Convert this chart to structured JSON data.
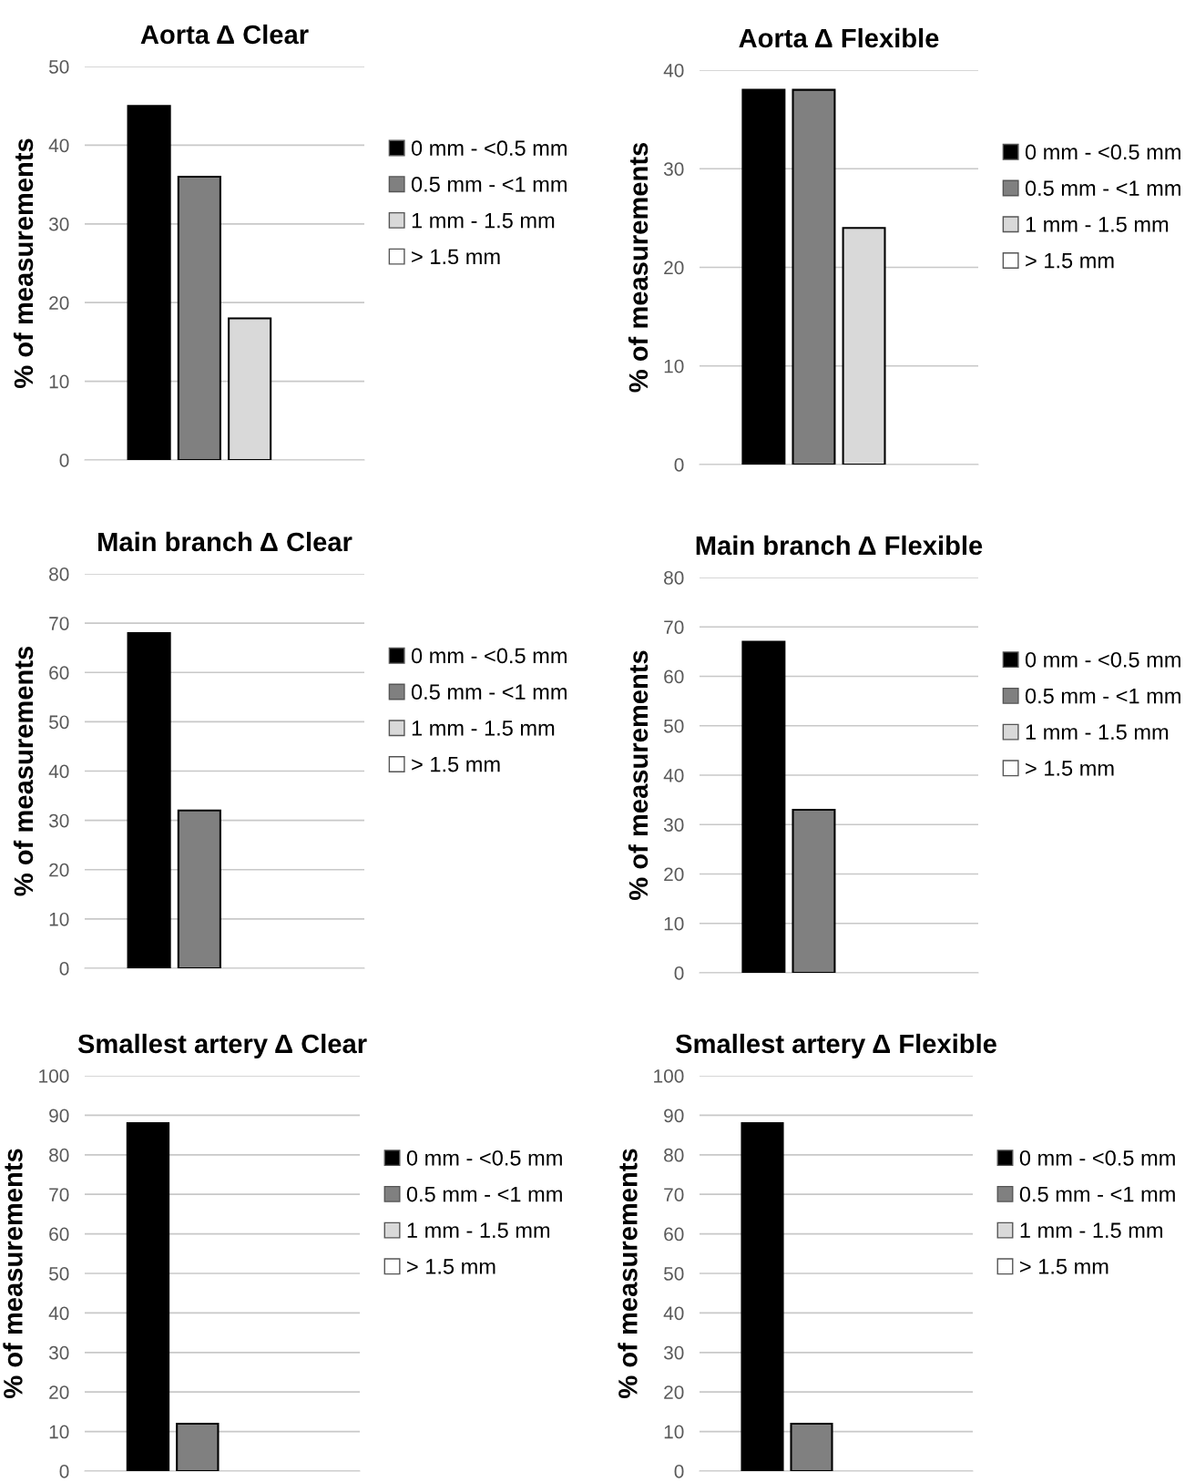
{
  "chart_data": [
    {
      "type": "bar",
      "title": "Aorta Δ Clear",
      "ylabel": "% of measurements",
      "categories": [
        null
      ],
      "ylim": [
        0,
        50
      ],
      "yticks": [
        0,
        10,
        20,
        30,
        40,
        50
      ],
      "grid": "y",
      "legend": "right",
      "series": [
        {
          "name": "0 mm - <0.5 mm",
          "color": "#000000",
          "values": [
            45
          ]
        },
        {
          "name": "0.5 mm - <1 mm",
          "color": "#808080",
          "values": [
            36
          ]
        },
        {
          "name": "1 mm - 1.5 mm",
          "color": "#d9d9d9",
          "values": [
            18
          ]
        },
        {
          "name": "> 1.5 mm",
          "color": "#ffffff",
          "values": [
            null
          ]
        }
      ]
    },
    {
      "type": "bar",
      "title": "Aorta Δ Flexible",
      "ylabel": "% of measurements",
      "categories": [
        null
      ],
      "ylim": [
        0,
        40
      ],
      "yticks": [
        0,
        10,
        20,
        30,
        40
      ],
      "grid": "y",
      "legend": "right",
      "series": [
        {
          "name": "0 mm - <0.5 mm",
          "color": "#000000",
          "values": [
            38
          ]
        },
        {
          "name": "0.5 mm - <1 mm",
          "color": "#808080",
          "values": [
            38
          ]
        },
        {
          "name": "1 mm - 1.5 mm",
          "color": "#d9d9d9",
          "values": [
            24
          ]
        },
        {
          "name": "> 1.5 mm",
          "color": "#ffffff",
          "values": [
            null
          ]
        }
      ]
    },
    {
      "type": "bar",
      "title": "Main branch Δ Clear",
      "ylabel": "% of measurements",
      "categories": [
        null
      ],
      "ylim": [
        0,
        80
      ],
      "yticks": [
        0,
        10,
        20,
        30,
        40,
        50,
        60,
        70,
        80
      ],
      "grid": "y",
      "legend": "right",
      "series": [
        {
          "name": "0 mm - <0.5 mm",
          "color": "#000000",
          "values": [
            68
          ]
        },
        {
          "name": "0.5 mm - <1 mm",
          "color": "#808080",
          "values": [
            32
          ]
        },
        {
          "name": "1 mm - 1.5 mm",
          "color": "#d9d9d9",
          "values": [
            null
          ]
        },
        {
          "name": "> 1.5 mm",
          "color": "#ffffff",
          "values": [
            null
          ]
        }
      ]
    },
    {
      "type": "bar",
      "title": "Main branch Δ Flexible",
      "ylabel": "% of measurements",
      "categories": [
        null
      ],
      "ylim": [
        0,
        80
      ],
      "yticks": [
        0,
        10,
        20,
        30,
        40,
        50,
        60,
        70,
        80
      ],
      "grid": "y",
      "legend": "right",
      "series": [
        {
          "name": "0 mm - <0.5 mm",
          "color": "#000000",
          "values": [
            67
          ]
        },
        {
          "name": "0.5 mm - <1 mm",
          "color": "#808080",
          "values": [
            33
          ]
        },
        {
          "name": "1 mm - 1.5 mm",
          "color": "#d9d9d9",
          "values": [
            null
          ]
        },
        {
          "name": "> 1.5 mm",
          "color": "#ffffff",
          "values": [
            null
          ]
        }
      ]
    },
    {
      "type": "bar",
      "title": "Smallest artery Δ Clear",
      "ylabel": "% of measurements",
      "categories": [
        null
      ],
      "ylim": [
        0,
        100
      ],
      "yticks": [
        0,
        10,
        20,
        30,
        40,
        50,
        60,
        70,
        80,
        90,
        100
      ],
      "grid": "y",
      "legend": "right",
      "series": [
        {
          "name": "0 mm - <0.5 mm",
          "color": "#000000",
          "values": [
            88
          ]
        },
        {
          "name": "0.5 mm - <1 mm",
          "color": "#808080",
          "values": [
            12
          ]
        },
        {
          "name": "1 mm - 1.5 mm",
          "color": "#d9d9d9",
          "values": [
            null
          ]
        },
        {
          "name": "> 1.5 mm",
          "color": "#ffffff",
          "values": [
            null
          ]
        }
      ]
    },
    {
      "type": "bar",
      "title": "Smallest artery Δ Flexible",
      "ylabel": "% of measurements",
      "categories": [
        null
      ],
      "ylim": [
        0,
        100
      ],
      "yticks": [
        0,
        10,
        20,
        30,
        40,
        50,
        60,
        70,
        80,
        90,
        100
      ],
      "grid": "y",
      "legend": "right",
      "series": [
        {
          "name": "0 mm - <0.5 mm",
          "color": "#000000",
          "values": [
            88
          ]
        },
        {
          "name": "0.5 mm - <1 mm",
          "color": "#808080",
          "values": [
            12
          ]
        },
        {
          "name": "1 mm - 1.5 mm",
          "color": "#d9d9d9",
          "values": [
            null
          ]
        },
        {
          "name": "> 1.5 mm",
          "color": "#ffffff",
          "values": [
            null
          ]
        }
      ]
    }
  ]
}
